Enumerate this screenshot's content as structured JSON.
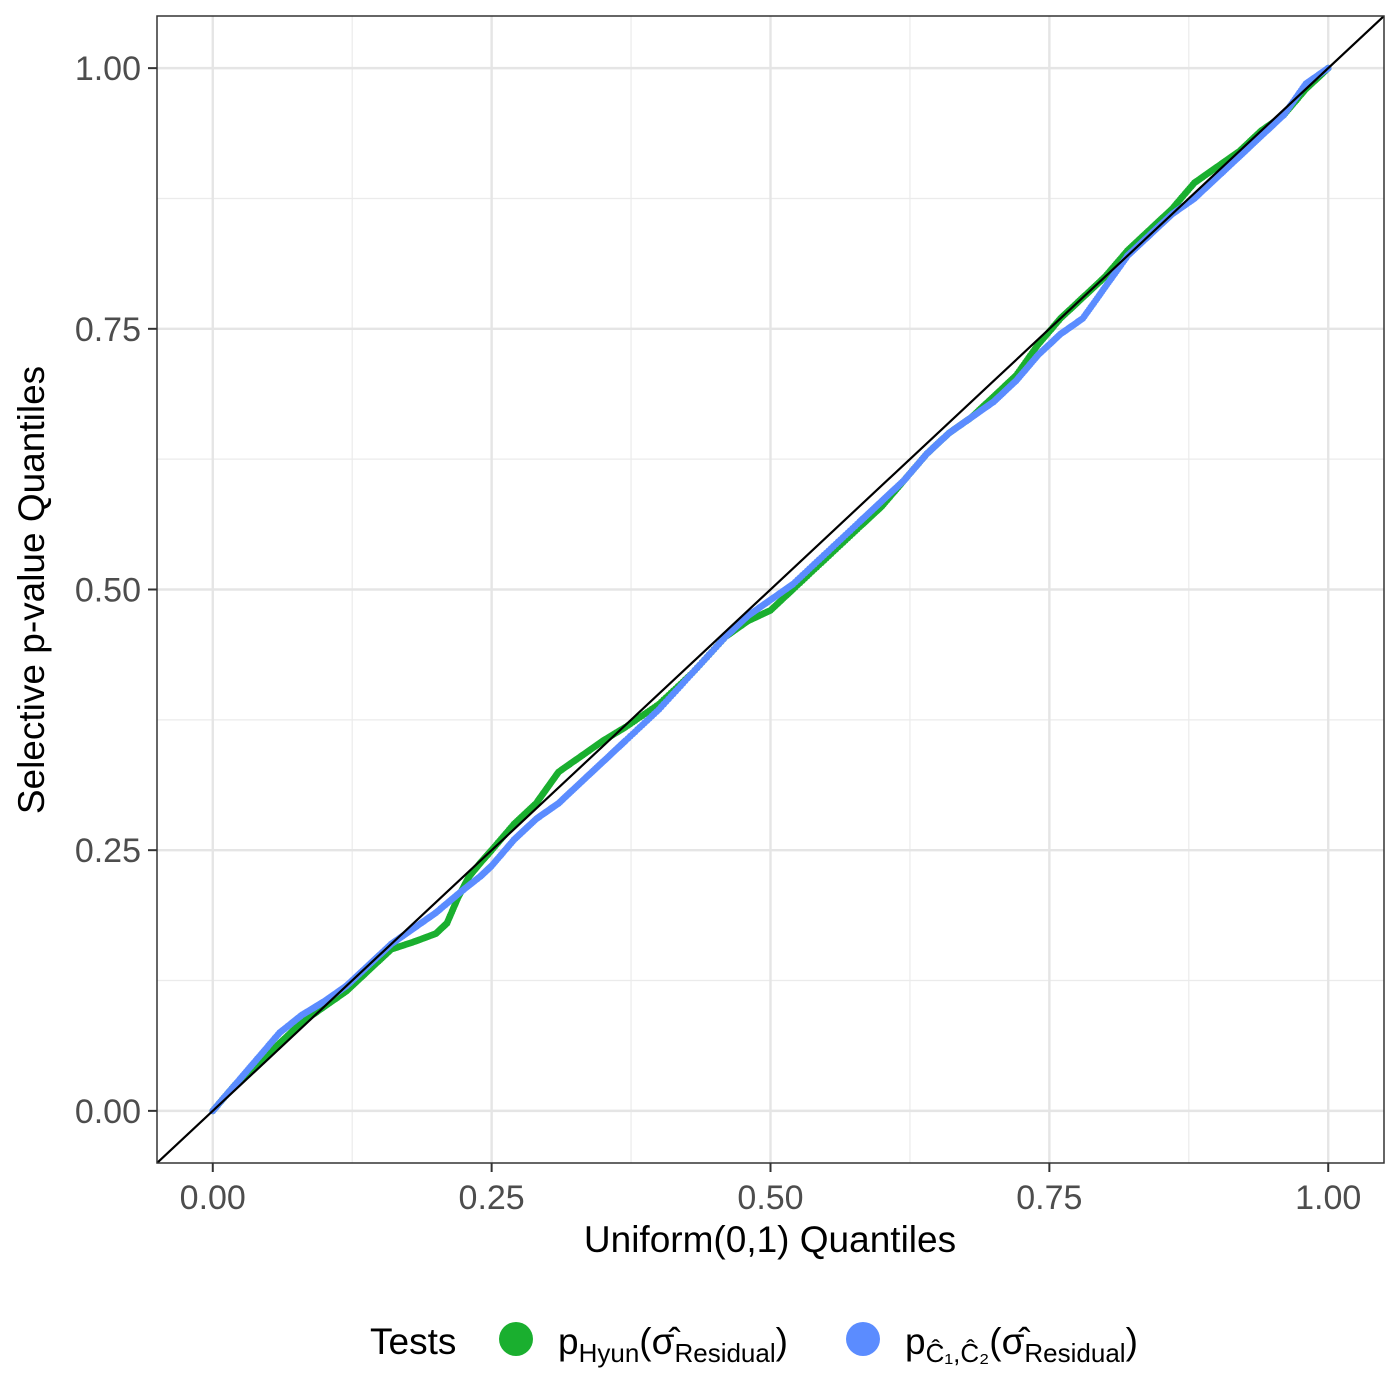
{
  "chart_data": {
    "type": "scatter",
    "xlabel": "Uniform(0,1) Quantiles",
    "ylabel": "Selective p-value Quantiles",
    "xlim": [
      -0.05,
      1.05
    ],
    "ylim": [
      -0.05,
      1.05
    ],
    "x_ticks": [
      0.0,
      0.25,
      0.5,
      0.75,
      1.0
    ],
    "x_tick_labels": [
      "0.00",
      "0.25",
      "0.50",
      "0.75",
      "1.00"
    ],
    "y_ticks": [
      0.0,
      0.25,
      0.5,
      0.75,
      1.0
    ],
    "y_tick_labels": [
      "0.00",
      "0.25",
      "0.50",
      "0.75",
      "1.00"
    ],
    "grid": true,
    "reference_line": {
      "slope": 1,
      "intercept": 0
    },
    "legend": {
      "title": "Tests",
      "position": "bottom",
      "entries": [
        {
          "text": "p",
          "sub": "Hyun",
          "rest_open": "(",
          "sigma": "σ̂",
          "sigma_sub": "Residual",
          "rest_close": ")"
        },
        {
          "text": "p",
          "sub": "Ĉ₁,Ĉ₂",
          "rest_open": "(",
          "sigma": "σ̂",
          "sigma_sub": "Residual",
          "rest_close": ")"
        }
      ]
    },
    "series": [
      {
        "color": "#1aaf2f",
        "x": [
          0.0,
          0.02,
          0.04,
          0.06,
          0.08,
          0.1,
          0.12,
          0.14,
          0.16,
          0.18,
          0.2,
          0.21,
          0.22,
          0.23,
          0.24,
          0.25,
          0.27,
          0.29,
          0.3,
          0.31,
          0.33,
          0.35,
          0.37,
          0.4,
          0.43,
          0.46,
          0.48,
          0.5,
          0.52,
          0.55,
          0.58,
          0.6,
          0.62,
          0.64,
          0.66,
          0.68,
          0.7,
          0.72,
          0.74,
          0.76,
          0.78,
          0.8,
          0.82,
          0.84,
          0.86,
          0.88,
          0.9,
          0.92,
          0.94,
          0.96,
          0.98,
          1.0
        ],
        "y": [
          0.0,
          0.025,
          0.045,
          0.065,
          0.085,
          0.1,
          0.115,
          0.135,
          0.155,
          0.162,
          0.17,
          0.18,
          0.205,
          0.225,
          0.238,
          0.25,
          0.275,
          0.295,
          0.31,
          0.325,
          0.34,
          0.355,
          0.368,
          0.39,
          0.42,
          0.455,
          0.47,
          0.48,
          0.5,
          0.53,
          0.56,
          0.58,
          0.605,
          0.63,
          0.65,
          0.665,
          0.685,
          0.705,
          0.735,
          0.76,
          0.78,
          0.8,
          0.825,
          0.845,
          0.865,
          0.89,
          0.905,
          0.92,
          0.94,
          0.955,
          0.98,
          1.0
        ]
      },
      {
        "color": "#5b8cff",
        "x": [
          0.0,
          0.02,
          0.04,
          0.06,
          0.08,
          0.1,
          0.12,
          0.14,
          0.16,
          0.18,
          0.2,
          0.22,
          0.24,
          0.25,
          0.27,
          0.29,
          0.31,
          0.33,
          0.35,
          0.37,
          0.4,
          0.43,
          0.46,
          0.48,
          0.5,
          0.52,
          0.55,
          0.58,
          0.6,
          0.62,
          0.64,
          0.66,
          0.68,
          0.7,
          0.72,
          0.74,
          0.76,
          0.78,
          0.8,
          0.82,
          0.84,
          0.86,
          0.88,
          0.9,
          0.92,
          0.94,
          0.96,
          0.98,
          1.0
        ],
        "y": [
          0.0,
          0.025,
          0.05,
          0.075,
          0.092,
          0.105,
          0.12,
          0.14,
          0.16,
          0.175,
          0.19,
          0.208,
          0.225,
          0.235,
          0.26,
          0.28,
          0.295,
          0.315,
          0.335,
          0.355,
          0.385,
          0.42,
          0.455,
          0.475,
          0.49,
          0.505,
          0.535,
          0.565,
          0.585,
          0.605,
          0.63,
          0.65,
          0.665,
          0.68,
          0.7,
          0.725,
          0.745,
          0.76,
          0.79,
          0.82,
          0.84,
          0.86,
          0.875,
          0.895,
          0.915,
          0.935,
          0.955,
          0.985,
          1.0
        ]
      }
    ]
  }
}
